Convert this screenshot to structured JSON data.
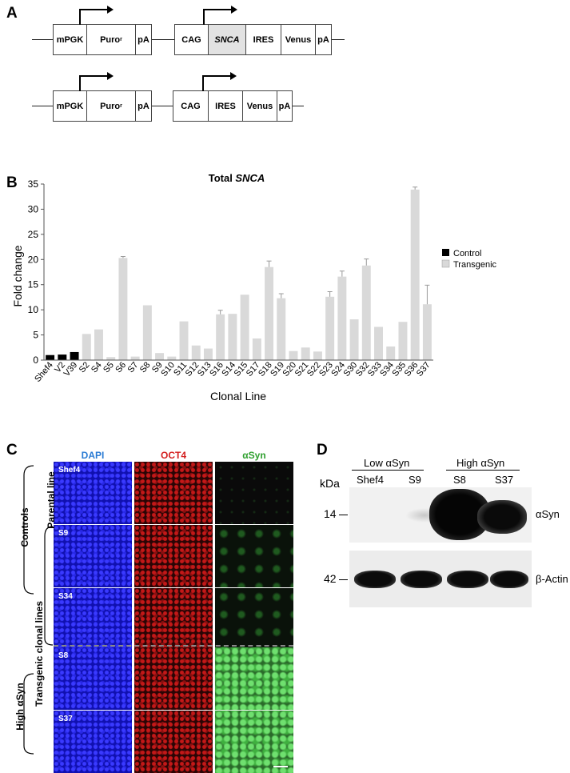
{
  "panel_a": {
    "label": "A",
    "row1": {
      "mpgk": "mPGK",
      "puro": "Puro",
      "puro_sup": "r",
      "pa1": "pA",
      "cag": "CAG",
      "snca": "SNCA",
      "ires": "IRES",
      "venus": "Venus",
      "pa2": "pA"
    },
    "row2": {
      "mpgk": "mPGK",
      "puro": "Puro",
      "puro_sup": "r",
      "pa1": "pA",
      "cag": "CAG",
      "ires": "IRES",
      "venus": "Venus",
      "pa2": "pA"
    }
  },
  "panel_b": {
    "label": "B"
  },
  "chart_data": {
    "type": "bar",
    "title": "Total SNCA",
    "title_prefix": "Total ",
    "title_italic": "SNCA",
    "xlabel": "Clonal Line",
    "ylabel": "Fold change",
    "ylim": [
      0,
      35
    ],
    "yticks": [
      "0",
      "5",
      "10",
      "15",
      "20",
      "25",
      "30",
      "35"
    ],
    "categories": [
      "Shef4",
      "V2",
      "V39",
      "S2",
      "S4",
      "S5",
      "S6",
      "S7",
      "S8",
      "S9",
      "S10",
      "S11",
      "S12",
      "S13",
      "S16",
      "S14",
      "S15",
      "S17",
      "S18",
      "S19",
      "S20",
      "S21",
      "S22",
      "S23",
      "S24",
      "S30",
      "S32",
      "S33",
      "S34",
      "S35",
      "S36",
      "S37"
    ],
    "series": [
      {
        "name": "Control",
        "color": "#000000",
        "values": [
          1.0,
          1.1,
          1.6,
          null,
          null,
          null,
          null,
          null,
          null,
          null,
          null,
          null,
          null,
          null,
          null,
          null,
          null,
          null,
          null,
          null,
          null,
          null,
          null,
          null,
          null,
          null,
          null,
          null,
          null,
          null,
          null,
          null
        ]
      },
      {
        "name": "Transgenic",
        "color": "#d9d9d9",
        "values": [
          null,
          null,
          null,
          5.2,
          6.1,
          0.6,
          20.3,
          0.7,
          10.9,
          1.4,
          0.7,
          7.7,
          2.9,
          2.3,
          9.1,
          9.2,
          13.0,
          4.3,
          18.5,
          12.3,
          1.8,
          2.5,
          1.7,
          12.6,
          16.6,
          8.1,
          18.8,
          6.6,
          2.7,
          7.6,
          33.9,
          11.1
        ]
      }
    ],
    "errors": [
      0,
      0,
      0,
      0,
      0,
      0,
      0.3,
      0,
      0,
      0,
      0,
      0,
      0,
      0,
      0.8,
      0,
      0,
      0,
      1.2,
      0.9,
      0,
      0,
      0,
      1.0,
      1.1,
      0,
      1.3,
      0,
      0,
      0,
      0.5,
      3.8
    ],
    "legend": [
      "Control",
      "Transgenic"
    ],
    "legend_position": "right",
    "grid": false
  },
  "panel_c": {
    "label": "C",
    "columns": [
      "DAPI",
      "OCT4",
      "αSyn"
    ],
    "column_colors": [
      "#2a7bd4",
      "#d42020",
      "#2fa02f"
    ],
    "rows": [
      "Shef4",
      "S9",
      "S34",
      "S8",
      "S37"
    ],
    "side": {
      "parental": "Parental line",
      "transgenic": "Transgenic clonal lines",
      "controls": "Controls",
      "high": "High αSyn"
    }
  },
  "panel_d": {
    "label": "D",
    "kda": "kDa",
    "group_low": "Low αSyn",
    "group_high": "High αSyn",
    "lanes": [
      "Shef4",
      "S9",
      "S8",
      "S37"
    ],
    "markers": [
      "14",
      "42"
    ],
    "bands": [
      "αSyn",
      "β-Actin"
    ]
  }
}
